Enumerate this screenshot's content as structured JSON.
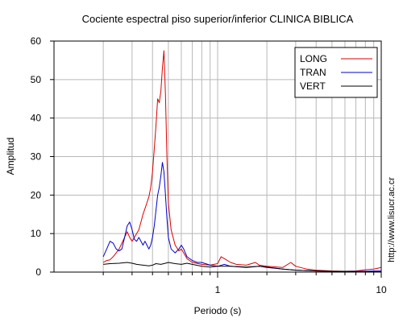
{
  "chart_data": {
    "type": "line",
    "title": "Cociente espectral piso superior/inferior  CLINICA BIBLICA",
    "xlabel": "Periodo (s)",
    "ylabel": "Amplitud",
    "x_scale": "log",
    "xlim": [
      0.1,
      10
    ],
    "ylim": [
      0,
      60
    ],
    "y_ticks": [
      0,
      10,
      20,
      30,
      40,
      50,
      60
    ],
    "x_tick_labels": [
      {
        "value": 1,
        "label": "1"
      },
      {
        "value": 10,
        "label": "10"
      }
    ],
    "grid": true,
    "legend_position": "top-right",
    "series": [
      {
        "name": "LONG",
        "color": "#dd0000",
        "points": [
          [
            0.2,
            2.5
          ],
          [
            0.21,
            3
          ],
          [
            0.22,
            3.2
          ],
          [
            0.23,
            4
          ],
          [
            0.24,
            5
          ],
          [
            0.25,
            6
          ],
          [
            0.26,
            7.5
          ],
          [
            0.27,
            9
          ],
          [
            0.28,
            10.5
          ],
          [
            0.29,
            9
          ],
          [
            0.3,
            8
          ],
          [
            0.31,
            9
          ],
          [
            0.32,
            10
          ],
          [
            0.33,
            11
          ],
          [
            0.34,
            13
          ],
          [
            0.35,
            15
          ],
          [
            0.36,
            16.5
          ],
          [
            0.37,
            18
          ],
          [
            0.38,
            19.5
          ],
          [
            0.39,
            22
          ],
          [
            0.4,
            26
          ],
          [
            0.41,
            32
          ],
          [
            0.42,
            38
          ],
          [
            0.43,
            45
          ],
          [
            0.44,
            44
          ],
          [
            0.45,
            47
          ],
          [
            0.46,
            53
          ],
          [
            0.47,
            57.5
          ],
          [
            0.48,
            46
          ],
          [
            0.49,
            30
          ],
          [
            0.5,
            18
          ],
          [
            0.52,
            11
          ],
          [
            0.55,
            7
          ],
          [
            0.58,
            5.5
          ],
          [
            0.6,
            6
          ],
          [
            0.62,
            5
          ],
          [
            0.65,
            3.5
          ],
          [
            0.7,
            2.5
          ],
          [
            0.8,
            2
          ],
          [
            0.9,
            1.8
          ],
          [
            1.0,
            2.2
          ],
          [
            1.05,
            4
          ],
          [
            1.1,
            3.5
          ],
          [
            1.2,
            2.5
          ],
          [
            1.3,
            2
          ],
          [
            1.5,
            1.8
          ],
          [
            1.7,
            2.5
          ],
          [
            1.8,
            1.8
          ],
          [
            2.0,
            1.5
          ],
          [
            2.5,
            1.2
          ],
          [
            2.8,
            2.5
          ],
          [
            3.0,
            1.5
          ],
          [
            3.5,
            0.8
          ],
          [
            4,
            0.5
          ],
          [
            5,
            0.3
          ],
          [
            6,
            0.2
          ],
          [
            7,
            0.3
          ],
          [
            8,
            0.6
          ],
          [
            9,
            0.8
          ],
          [
            10,
            1.2
          ]
        ]
      },
      {
        "name": "TRAN",
        "color": "#0000cc",
        "points": [
          [
            0.2,
            4
          ],
          [
            0.21,
            6
          ],
          [
            0.22,
            8
          ],
          [
            0.23,
            7.5
          ],
          [
            0.24,
            6
          ],
          [
            0.25,
            5.5
          ],
          [
            0.26,
            6
          ],
          [
            0.27,
            9
          ],
          [
            0.28,
            12
          ],
          [
            0.29,
            13
          ],
          [
            0.3,
            11
          ],
          [
            0.31,
            8.5
          ],
          [
            0.32,
            8
          ],
          [
            0.33,
            9
          ],
          [
            0.34,
            8
          ],
          [
            0.35,
            7
          ],
          [
            0.36,
            8
          ],
          [
            0.37,
            7
          ],
          [
            0.38,
            6
          ],
          [
            0.39,
            7
          ],
          [
            0.4,
            9
          ],
          [
            0.41,
            12
          ],
          [
            0.42,
            16
          ],
          [
            0.43,
            20
          ],
          [
            0.44,
            22
          ],
          [
            0.45,
            25
          ],
          [
            0.46,
            28.5
          ],
          [
            0.47,
            26
          ],
          [
            0.48,
            20
          ],
          [
            0.49,
            14
          ],
          [
            0.5,
            9
          ],
          [
            0.52,
            6
          ],
          [
            0.55,
            5
          ],
          [
            0.58,
            6
          ],
          [
            0.6,
            7
          ],
          [
            0.62,
            6
          ],
          [
            0.65,
            4
          ],
          [
            0.7,
            3
          ],
          [
            0.75,
            2.5
          ],
          [
            0.8,
            2.5
          ],
          [
            0.9,
            1.8
          ],
          [
            1.0,
            1.5
          ],
          [
            1.1,
            2
          ],
          [
            1.2,
            1.5
          ],
          [
            1.5,
            1.2
          ],
          [
            1.8,
            1.5
          ],
          [
            2.0,
            1.2
          ],
          [
            2.5,
            0.8
          ],
          [
            3,
            0.5
          ],
          [
            4,
            0.3
          ],
          [
            5,
            0.2
          ],
          [
            6,
            0.2
          ],
          [
            7,
            0.2
          ],
          [
            8,
            0.2
          ],
          [
            9,
            0.3
          ],
          [
            10,
            0.3
          ]
        ]
      },
      {
        "name": "VERT",
        "color": "#000000",
        "points": [
          [
            0.2,
            2
          ],
          [
            0.22,
            2.2
          ],
          [
            0.25,
            2.3
          ],
          [
            0.28,
            2.5
          ],
          [
            0.3,
            2.3
          ],
          [
            0.32,
            2
          ],
          [
            0.35,
            1.8
          ],
          [
            0.38,
            1.6
          ],
          [
            0.4,
            1.8
          ],
          [
            0.42,
            2.2
          ],
          [
            0.45,
            2
          ],
          [
            0.48,
            2.3
          ],
          [
            0.5,
            2.5
          ],
          [
            0.55,
            2.2
          ],
          [
            0.6,
            2
          ],
          [
            0.65,
            2.3
          ],
          [
            0.7,
            2
          ],
          [
            0.8,
            1.5
          ],
          [
            0.9,
            1.3
          ],
          [
            1.0,
            1.5
          ],
          [
            1.2,
            1.5
          ],
          [
            1.5,
            1.3
          ],
          [
            1.8,
            1.5
          ],
          [
            2.0,
            1.3
          ],
          [
            2.5,
            0.8
          ],
          [
            3,
            0.5
          ],
          [
            4,
            0.3
          ],
          [
            5,
            0.2
          ],
          [
            6,
            0.2
          ],
          [
            8,
            0.1
          ],
          [
            10,
            0.1
          ]
        ]
      }
    ]
  },
  "side_text": "http://www.lisucr.ac.cr"
}
